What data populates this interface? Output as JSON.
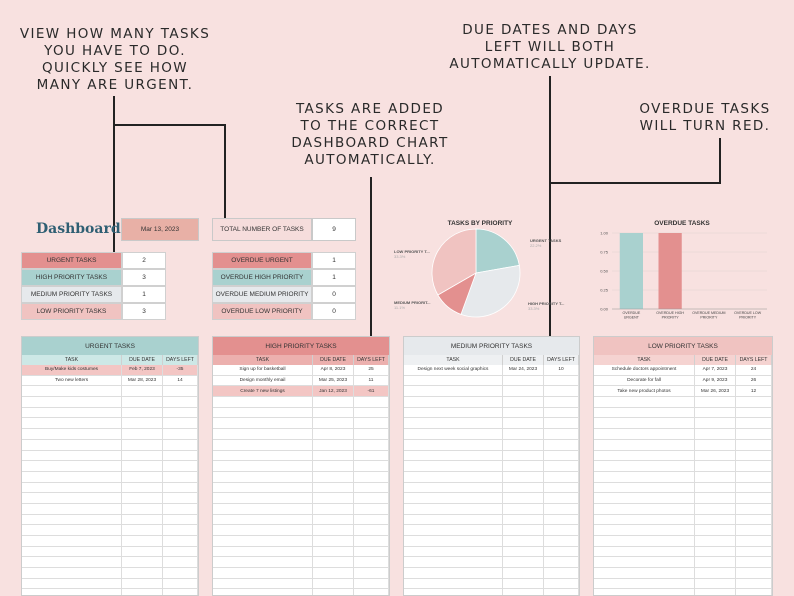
{
  "callouts": {
    "tasks_count": "VIEW HOW MANY TASKS\nYOU HAVE TO DO.\nQUICKLY SEE HOW\nMANY ARE URGENT.",
    "added": "TASKS ARE ADDED\nTO THE CORRECT\nDASHBOARD CHART\nAUTOMATICALLY.",
    "due_dates": "DUE DATES AND DAYS\nLEFT WILL BOTH\nAUTOMATICALLY UPDATE.",
    "overdue": "OVERDUE TASKS\nWILL TURN RED."
  },
  "dashboard": {
    "title": "Dashboard",
    "date": "Mar 13, 2023",
    "total_label": "TOTAL NUMBER OF TASKS",
    "total_value": "9"
  },
  "counts": [
    {
      "label": "URGENT TASKS",
      "value": "2",
      "color": "#e3908f"
    },
    {
      "label": "HIGH PRIORITY TASKS",
      "value": "3",
      "color": "#a9d1cf"
    },
    {
      "label": "MEDIUM PRIORITY TASKS",
      "value": "1",
      "color": "#e6e9ec"
    },
    {
      "label": "LOW PRIORITY TASKS",
      "value": "3",
      "color": "#f0c3c1"
    }
  ],
  "overdue_counts": [
    {
      "label": "OVERDUE URGENT",
      "value": "1"
    },
    {
      "label": "OVERDUE HIGH PRIORITY",
      "value": "1"
    },
    {
      "label": "OVERDUE MEDIUM PRIORITY",
      "value": "0"
    },
    {
      "label": "OVERDUE LOW PRIORITY",
      "value": "0"
    }
  ],
  "pie_chart": {
    "title": "TASKS BY PRIORITY",
    "labels": [
      {
        "name": "URGENT TASKS",
        "pct": "22.2%"
      },
      {
        "name": "HIGH PRIORITY T...",
        "pct": "33.3%"
      },
      {
        "name": "MEDIUM PRIORIT...",
        "pct": "11.1%"
      },
      {
        "name": "LOW PRIORITY T...",
        "pct": "33.3%"
      }
    ]
  },
  "chart_data": [
    {
      "type": "pie",
      "title": "TASKS BY PRIORITY",
      "categories": [
        "URGENT TASKS",
        "HIGH PRIORITY TASKS",
        "MEDIUM PRIORITY TASKS",
        "LOW PRIORITY TASKS"
      ],
      "values": [
        2,
        3,
        1,
        3
      ],
      "colors": [
        "#a9d1cf",
        "#e6e9ec",
        "#e3908f",
        "#f0c3c1"
      ]
    },
    {
      "type": "bar",
      "title": "OVERDUE TASKS",
      "categories": [
        "OVERDUE URGENT",
        "OVERDUE HIGH PRIORITY",
        "OVERDUE MEDIUM PRIORITY",
        "OVERDUE LOW PRIORITY"
      ],
      "values": [
        1,
        1,
        0,
        0
      ],
      "colors": [
        "#a9d1cf",
        "#e3908f",
        "#e6e9ec",
        "#f0c3c1"
      ],
      "ylim": [
        0,
        1
      ],
      "yticks": [
        "1.00",
        "0.75",
        "0.50",
        "0.25",
        "0.00"
      ]
    }
  ],
  "columns": {
    "task": "TASK",
    "due": "DUE DATE",
    "days": "DAYS LEFT"
  },
  "panels": [
    {
      "title": "URGENT TASKS",
      "head_color": "#a9d1cf",
      "col_color": "#cde8e6",
      "rows": [
        {
          "task": "Buy/Make kids costumes",
          "due": "Feb 7, 2023",
          "days": "-35",
          "overdue": true
        },
        {
          "task": "Two new letters",
          "due": "Mar 28, 2023",
          "days": "14",
          "overdue": false
        }
      ]
    },
    {
      "title": "HIGH PRIORITY TASKS",
      "head_color": "#e3908f",
      "col_color": "#ecb0ae",
      "rows": [
        {
          "task": "Sign up for basketball",
          "due": "Apr 8, 2023",
          "days": "25",
          "overdue": false
        },
        {
          "task": "Design monthly email",
          "due": "Mar 25, 2023",
          "days": "11",
          "overdue": false
        },
        {
          "task": "Create 7 new listings",
          "due": "Jan 12, 2023",
          "days": "-61",
          "overdue": true
        }
      ]
    },
    {
      "title": "MEDIUM PRIORITY TASKS",
      "head_color": "#e6e9ec",
      "col_color": "#eef0f2",
      "rows": [
        {
          "task": "Design next week social graphics",
          "due": "Mar 24, 2023",
          "days": "10",
          "overdue": false
        }
      ]
    },
    {
      "title": "LOW PRIORITY TASKS",
      "head_color": "#f0c3c1",
      "col_color": "#f5d3d1",
      "rows": [
        {
          "task": "Schedule doctors appointment",
          "due": "Apr 7, 2023",
          "days": "24",
          "overdue": false
        },
        {
          "task": "Decorate for fall",
          "due": "Apr 9, 2023",
          "days": "26",
          "overdue": false
        },
        {
          "task": "Take new product photos",
          "due": "Mar 26, 2023",
          "days": "12",
          "overdue": false
        }
      ]
    }
  ]
}
